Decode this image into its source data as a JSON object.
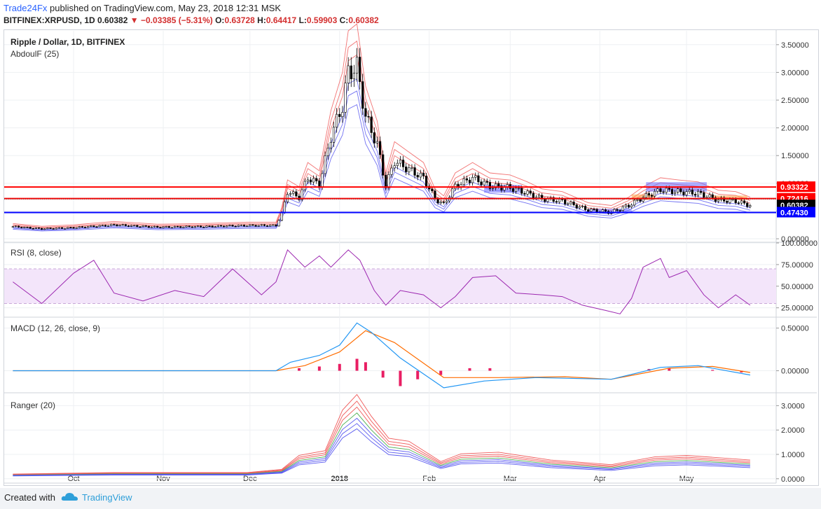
{
  "header": {
    "author": "Trade24Fx",
    "published": "published on TradingView.com, May 23, 2018 12:31 MSK",
    "symbol": "BITFINEX:XRPUSD, 1D",
    "last": "0.60382",
    "change": "−0.03385 (−5.31%)",
    "open_label": "O:",
    "open": "0.63728",
    "high_label": "H:",
    "high": "0.64417",
    "low_label": "L:",
    "low": "0.59903",
    "close_label": "C:",
    "close": "0.60382"
  },
  "panes": {
    "main_title": "Ripple / Dollar, 1D, BITFINEX",
    "main_indicator": "AbdoulF (25)",
    "rsi_title": "RSI (8, close)",
    "macd_title": "MACD (12, 26, close, 9)",
    "ranger_title": "Ranger (20)"
  },
  "footer": {
    "created_with": "Created with",
    "brand": "TradingView"
  },
  "colors": {
    "red_level": "#ff0000",
    "blue_level": "#0000ff",
    "band_red": "#f05a5a",
    "band_blue": "#5a5af0",
    "rsi": "#9c27b0",
    "macd": "#2196f3",
    "signal": "#ff6d00",
    "hist": "#e91e63"
  },
  "chart_data": [
    {
      "type": "candlestick",
      "title": "Ripple / Dollar, 1D, BITFINEX",
      "x_ticks": [
        "Oct",
        "Nov",
        "Dec",
        "2018",
        "Feb",
        "Mar",
        "Apr",
        "May"
      ],
      "y_ticks": [
        "0.00000",
        "0.50000",
        "1.00000",
        "1.50000",
        "2.00000",
        "2.50000",
        "3.00000",
        "3.50000"
      ],
      "ylim": [
        -0.05,
        3.75
      ],
      "price_levels": [
        {
          "label": "0.93322",
          "value": 0.93322,
          "color": "#ff0000"
        },
        {
          "label": "0.72416",
          "value": 0.72416,
          "color": "#ff0000"
        },
        {
          "label": "0.60382",
          "value": 0.60382,
          "color": "#000000"
        },
        {
          "label": "0.47430",
          "value": 0.4743,
          "color": "#0000ff"
        }
      ],
      "close_series": [
        [
          "2017-09-10",
          0.22
        ],
        [
          "2017-09-20",
          0.18
        ],
        [
          "2017-10-01",
          0.2
        ],
        [
          "2017-10-15",
          0.25
        ],
        [
          "2017-10-30",
          0.21
        ],
        [
          "2017-11-15",
          0.22
        ],
        [
          "2017-11-30",
          0.24
        ],
        [
          "2017-12-10",
          0.24
        ],
        [
          "2017-12-12",
          0.45
        ],
        [
          "2017-12-14",
          0.85
        ],
        [
          "2017-12-18",
          0.75
        ],
        [
          "2017-12-21",
          1.1
        ],
        [
          "2017-12-25",
          0.98
        ],
        [
          "2017-12-29",
          1.85
        ],
        [
          "2018-01-02",
          2.4
        ],
        [
          "2018-01-04",
          3.0
        ],
        [
          "2018-01-07",
          3.1
        ],
        [
          "2018-01-10",
          2.2
        ],
        [
          "2018-01-14",
          1.7
        ],
        [
          "2018-01-17",
          0.95
        ],
        [
          "2018-01-20",
          1.4
        ],
        [
          "2018-01-25",
          1.25
        ],
        [
          "2018-01-30",
          1.1
        ],
        [
          "2018-02-03",
          0.72
        ],
        [
          "2018-02-06",
          0.62
        ],
        [
          "2018-02-10",
          0.95
        ],
        [
          "2018-02-16",
          1.1
        ],
        [
          "2018-02-22",
          0.95
        ],
        [
          "2018-03-01",
          0.92
        ],
        [
          "2018-03-07",
          0.82
        ],
        [
          "2018-03-12",
          0.72
        ],
        [
          "2018-03-19",
          0.68
        ],
        [
          "2018-03-28",
          0.52
        ],
        [
          "2018-04-05",
          0.48
        ],
        [
          "2018-04-11",
          0.6
        ],
        [
          "2018-04-16",
          0.75
        ],
        [
          "2018-04-22",
          0.88
        ],
        [
          "2018-04-28",
          0.85
        ],
        [
          "2018-05-05",
          0.82
        ],
        [
          "2018-05-12",
          0.7
        ],
        [
          "2018-05-18",
          0.68
        ],
        [
          "2018-05-23",
          0.6
        ]
      ]
    },
    {
      "type": "line",
      "title": "RSI (8, close)",
      "y_ticks": [
        "25.00000",
        "50.00000",
        "75.00000",
        "100.00000"
      ],
      "ylim": [
        15,
        100
      ],
      "band": [
        30,
        70
      ],
      "series": [
        {
          "name": "RSI",
          "values": [
            [
              "2017-09-10",
              55
            ],
            [
              "2017-09-20",
              30
            ],
            [
              "2017-10-01",
              65
            ],
            [
              "2017-10-08",
              80
            ],
            [
              "2017-10-15",
              42
            ],
            [
              "2017-10-25",
              33
            ],
            [
              "2017-11-05",
              45
            ],
            [
              "2017-11-15",
              38
            ],
            [
              "2017-11-25",
              70
            ],
            [
              "2017-12-05",
              40
            ],
            [
              "2017-12-10",
              55
            ],
            [
              "2017-12-14",
              92
            ],
            [
              "2017-12-20",
              72
            ],
            [
              "2017-12-25",
              85
            ],
            [
              "2017-12-29",
              72
            ],
            [
              "2018-01-04",
              92
            ],
            [
              "2018-01-08",
              80
            ],
            [
              "2018-01-13",
              45
            ],
            [
              "2018-01-17",
              28
            ],
            [
              "2018-01-22",
              45
            ],
            [
              "2018-01-30",
              40
            ],
            [
              "2018-02-05",
              25
            ],
            [
              "2018-02-10",
              38
            ],
            [
              "2018-02-16",
              60
            ],
            [
              "2018-02-24",
              62
            ],
            [
              "2018-03-03",
              42
            ],
            [
              "2018-03-12",
              40
            ],
            [
              "2018-03-19",
              38
            ],
            [
              "2018-03-26",
              28
            ],
            [
              "2018-04-03",
              22
            ],
            [
              "2018-04-08",
              18
            ],
            [
              "2018-04-12",
              36
            ],
            [
              "2018-04-16",
              72
            ],
            [
              "2018-04-22",
              82
            ],
            [
              "2018-04-25",
              60
            ],
            [
              "2018-05-01",
              68
            ],
            [
              "2018-05-07",
              40
            ],
            [
              "2018-05-12",
              25
            ],
            [
              "2018-05-18",
              40
            ],
            [
              "2018-05-23",
              28
            ]
          ]
        }
      ]
    },
    {
      "type": "line",
      "title": "MACD (12, 26, close, 9)",
      "y_ticks": [
        "0.00000",
        "0.50000"
      ],
      "ylim": [
        -0.25,
        0.62
      ],
      "series": [
        {
          "name": "MACD",
          "values": [
            [
              "2017-09-10",
              0.0
            ],
            [
              "2017-12-10",
              0.0
            ],
            [
              "2017-12-15",
              0.1
            ],
            [
              "2017-12-25",
              0.18
            ],
            [
              "2018-01-01",
              0.3
            ],
            [
              "2018-01-07",
              0.56
            ],
            [
              "2018-01-12",
              0.45
            ],
            [
              "2018-01-22",
              0.15
            ],
            [
              "2018-02-06",
              -0.2
            ],
            [
              "2018-02-20",
              -0.12
            ],
            [
              "2018-03-10",
              -0.08
            ],
            [
              "2018-04-05",
              -0.1
            ],
            [
              "2018-04-22",
              0.04
            ],
            [
              "2018-05-05",
              0.06
            ],
            [
              "2018-05-23",
              -0.05
            ]
          ]
        },
        {
          "name": "Signal",
          "values": [
            [
              "2017-09-10",
              0.0
            ],
            [
              "2017-12-10",
              0.0
            ],
            [
              "2017-12-20",
              0.06
            ],
            [
              "2018-01-01",
              0.22
            ],
            [
              "2018-01-10",
              0.47
            ],
            [
              "2018-01-20",
              0.33
            ],
            [
              "2018-02-06",
              -0.08
            ],
            [
              "2018-02-25",
              -0.08
            ],
            [
              "2018-03-20",
              -0.07
            ],
            [
              "2018-04-05",
              -0.1
            ],
            [
              "2018-04-25",
              0.03
            ],
            [
              "2018-05-10",
              0.05
            ],
            [
              "2018-05-23",
              -0.02
            ]
          ]
        }
      ],
      "histogram": [
        [
          "2017-12-18",
          0.03
        ],
        [
          "2017-12-25",
          0.05
        ],
        [
          "2018-01-01",
          0.08
        ],
        [
          "2018-01-07",
          0.14
        ],
        [
          "2018-01-10",
          0.1
        ],
        [
          "2018-01-16",
          -0.08
        ],
        [
          "2018-01-22",
          -0.18
        ],
        [
          "2018-01-28",
          -0.1
        ],
        [
          "2018-02-05",
          -0.05
        ],
        [
          "2018-02-15",
          0.03
        ],
        [
          "2018-02-22",
          0.03
        ],
        [
          "2018-04-18",
          0.02
        ],
        [
          "2018-04-25",
          0.03
        ],
        [
          "2018-05-10",
          0.01
        ],
        [
          "2018-05-20",
          -0.02
        ]
      ]
    },
    {
      "type": "line",
      "title": "Ranger (20)",
      "y_ticks": [
        "0.0000",
        "1.0000",
        "2.0000",
        "3.0000"
      ],
      "ylim": [
        -0.15,
        3.5
      ],
      "series": [
        {
          "name": "mid",
          "values": [
            [
              "2017-09-10",
              0.15
            ],
            [
              "2017-10-15",
              0.2
            ],
            [
              "2017-11-30",
              0.2
            ],
            [
              "2017-12-12",
              0.3
            ],
            [
              "2017-12-18",
              0.75
            ],
            [
              "2017-12-27",
              0.9
            ],
            [
              "2018-01-02",
              2.2
            ],
            [
              "2018-01-07",
              2.7
            ],
            [
              "2018-01-12",
              2.0
            ],
            [
              "2018-01-18",
              1.3
            ],
            [
              "2018-01-25",
              1.2
            ],
            [
              "2018-02-05",
              0.55
            ],
            [
              "2018-02-12",
              0.8
            ],
            [
              "2018-02-25",
              0.85
            ],
            [
              "2018-03-15",
              0.6
            ],
            [
              "2018-04-05",
              0.45
            ],
            [
              "2018-04-20",
              0.7
            ],
            [
              "2018-05-01",
              0.75
            ],
            [
              "2018-05-23",
              0.6
            ]
          ]
        }
      ]
    }
  ]
}
